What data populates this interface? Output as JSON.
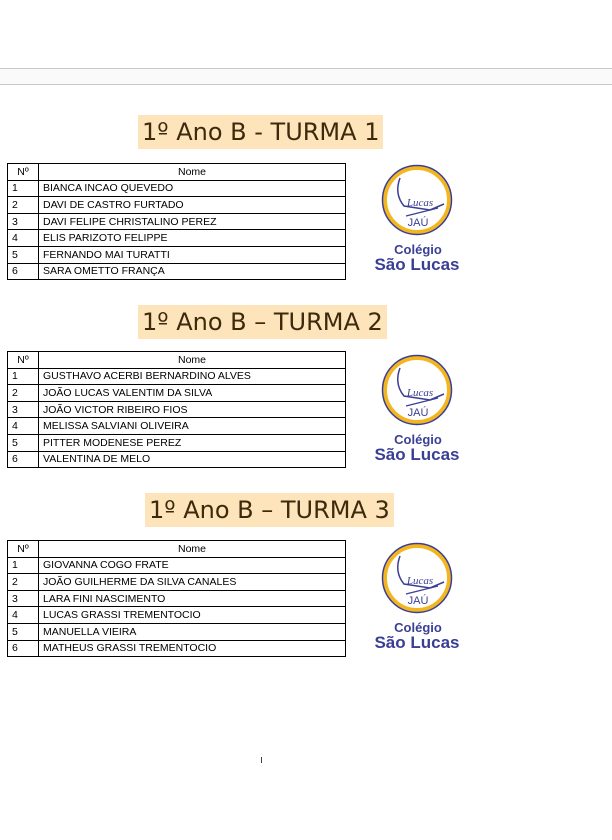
{
  "header_cols": {
    "num": "Nº",
    "name": "Nome"
  },
  "logo": {
    "city": "JAÚ",
    "line1": "Colégio",
    "line2": "São Lucas",
    "script": "Lucas",
    "brand_color": "#3a3f95",
    "ring_color": "#f3b61f"
  },
  "sections": [
    {
      "title": "1º Ano B - TURMA 1",
      "rows": [
        [
          "1",
          "BIANCA INCAO QUEVEDO"
        ],
        [
          "2",
          "DAVI DE CASTRO FURTADO"
        ],
        [
          "3",
          "DAVI FELIPE CHRISTALINO PEREZ"
        ],
        [
          "4",
          "ELIS PARIZOTO FELIPPE"
        ],
        [
          "5",
          "FERNANDO MAI TURATTI"
        ],
        [
          "6",
          "SARA OMETTO FRANÇA"
        ]
      ]
    },
    {
      "title": "1º Ano B – TURMA 2",
      "rows": [
        [
          "1",
          "GUSTHAVO ACERBI BERNARDINO ALVES"
        ],
        [
          "2",
          "JOÃO LUCAS VALENTIM DA SILVA"
        ],
        [
          "3",
          "JOÃO VICTOR RIBEIRO FIOS"
        ],
        [
          "4",
          "MELISSA SALVIANI OLIVEIRA"
        ],
        [
          "5",
          "PITTER MODENESE PEREZ"
        ],
        [
          "6",
          "VALENTINA DE MELO"
        ]
      ]
    },
    {
      "title": "1º Ano B – TURMA 3",
      "rows": [
        [
          "1",
          "GIOVANNA COGO FRATE"
        ],
        [
          "2",
          "JOÃO GUILHERME DA SILVA CANALES"
        ],
        [
          "3",
          "LARA FINI NASCIMENTO"
        ],
        [
          "4",
          "LUCAS GRASSI TREMENTOCIO"
        ],
        [
          "5",
          "MANUELLA VIEIRA"
        ],
        [
          "6",
          "MATHEUS GRASSI TREMENTOCIO"
        ]
      ]
    }
  ]
}
